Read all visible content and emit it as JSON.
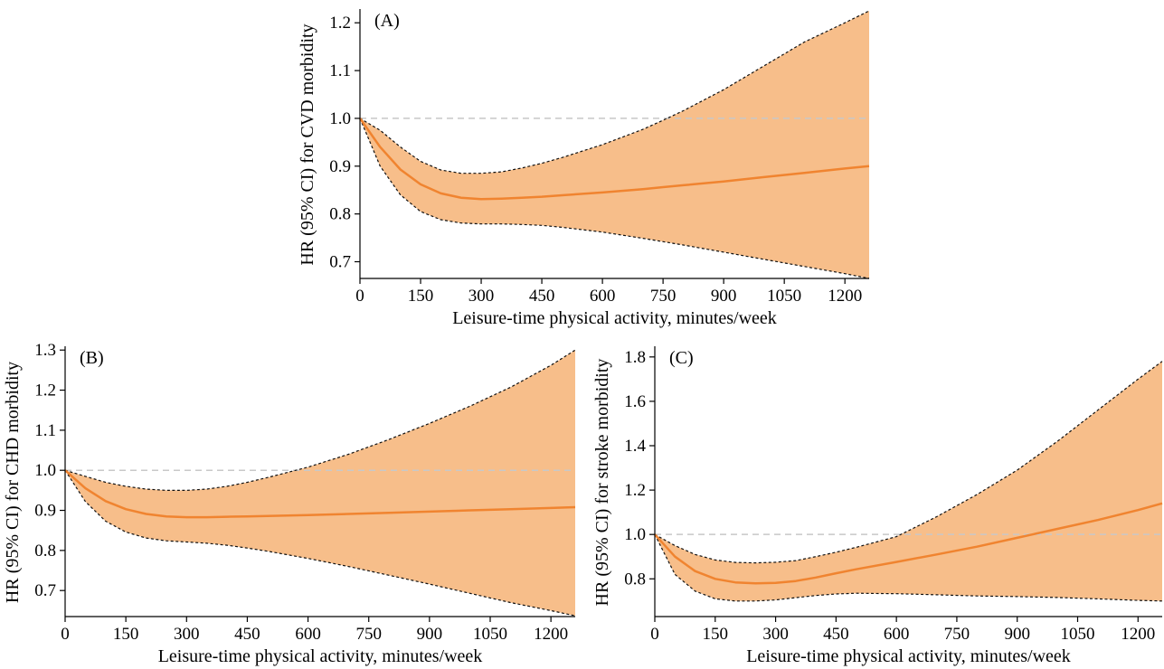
{
  "chart_data": [
    {
      "type": "line",
      "panel_label": "(A)",
      "xlabel": "Leisure-time physical activity, minutes/week",
      "ylabel": "HR (95% CI) for CVD morbidity",
      "xlim": [
        0,
        1260
      ],
      "ylim": [
        0.665,
        1.225
      ],
      "xticks": [
        0,
        150,
        300,
        450,
        600,
        750,
        900,
        1050,
        1200
      ],
      "yticks": [
        0.7,
        0.8,
        0.9,
        1.0,
        1.1,
        1.2
      ],
      "ytick_decimals": 1,
      "reference_line": 1.0,
      "x": [
        0,
        50,
        100,
        150,
        200,
        250,
        300,
        350,
        400,
        450,
        500,
        600,
        700,
        750,
        800,
        900,
        1000,
        1100,
        1200,
        1260
      ],
      "series": [
        {
          "values": [
            1.0,
            0.94,
            0.893,
            0.862,
            0.843,
            0.834,
            0.831,
            0.832,
            0.834,
            0.836,
            0.839,
            0.845,
            0.852,
            0.856,
            0.86,
            0.868,
            0.877,
            0.886,
            0.895,
            0.9
          ]
        },
        {
          "values": [
            1.0,
            0.975,
            0.94,
            0.91,
            0.892,
            0.885,
            0.885,
            0.888,
            0.896,
            0.906,
            0.918,
            0.945,
            0.977,
            0.996,
            1.016,
            1.06,
            1.11,
            1.16,
            1.2,
            1.225
          ]
        },
        {
          "values": [
            1.0,
            0.9,
            0.84,
            0.805,
            0.788,
            0.781,
            0.779,
            0.779,
            0.778,
            0.776,
            0.772,
            0.762,
            0.749,
            0.742,
            0.735,
            0.72,
            0.705,
            0.69,
            0.675,
            0.665
          ]
        }
      ],
      "colors": {
        "line": "#f08430",
        "band": "#f7be8a",
        "bound": "#111111",
        "reference": "#c8c8c8"
      }
    },
    {
      "type": "line",
      "panel_label": "(B)",
      "xlabel": "Leisure-time physical activity, minutes/week",
      "ylabel": "HR (95% CI) for CHD morbidity",
      "xlim": [
        0,
        1260
      ],
      "ylim": [
        0.635,
        1.305
      ],
      "xticks": [
        0,
        150,
        300,
        450,
        600,
        750,
        900,
        1050,
        1200
      ],
      "yticks": [
        0.7,
        0.8,
        0.9,
        1.0,
        1.1,
        1.2,
        1.3
      ],
      "ytick_decimals": 1,
      "reference_line": 1.0,
      "x": [
        0,
        50,
        100,
        150,
        200,
        250,
        300,
        350,
        400,
        450,
        500,
        600,
        700,
        800,
        900,
        1000,
        1100,
        1200,
        1260
      ],
      "series": [
        {
          "values": [
            1.0,
            0.955,
            0.923,
            0.903,
            0.891,
            0.885,
            0.883,
            0.883,
            0.884,
            0.885,
            0.886,
            0.888,
            0.891,
            0.894,
            0.897,
            0.9,
            0.903,
            0.906,
            0.908
          ]
        },
        {
          "values": [
            1.0,
            0.985,
            0.97,
            0.96,
            0.953,
            0.95,
            0.95,
            0.953,
            0.96,
            0.97,
            0.982,
            1.008,
            1.04,
            1.077,
            1.117,
            1.16,
            1.207,
            1.262,
            1.3
          ]
        },
        {
          "values": [
            1.0,
            0.922,
            0.873,
            0.846,
            0.831,
            0.824,
            0.821,
            0.818,
            0.813,
            0.806,
            0.798,
            0.78,
            0.76,
            0.738,
            0.716,
            0.693,
            0.67,
            0.65,
            0.637
          ]
        }
      ],
      "colors": {
        "line": "#f08430",
        "band": "#f7be8a",
        "bound": "#111111",
        "reference": "#c8c8c8"
      }
    },
    {
      "type": "line",
      "panel_label": "(C)",
      "xlabel": "Leisure-time physical activity, minutes/week",
      "ylabel": "HR (95% CI) for stroke morbidity",
      "xlim": [
        0,
        1260
      ],
      "ylim": [
        0.63,
        1.84
      ],
      "xticks": [
        0,
        150,
        300,
        450,
        600,
        750,
        900,
        1050,
        1200
      ],
      "yticks": [
        0.8,
        1.0,
        1.2,
        1.4,
        1.6,
        1.8
      ],
      "ytick_decimals": 1,
      "reference_line": 1.0,
      "x": [
        0,
        50,
        100,
        150,
        200,
        250,
        300,
        350,
        400,
        450,
        500,
        600,
        700,
        800,
        900,
        1000,
        1100,
        1200,
        1260
      ],
      "series": [
        {
          "values": [
            1.0,
            0.9,
            0.835,
            0.8,
            0.784,
            0.78,
            0.782,
            0.79,
            0.806,
            0.825,
            0.843,
            0.876,
            0.91,
            0.945,
            0.985,
            1.025,
            1.065,
            1.11,
            1.14
          ]
        },
        {
          "values": [
            1.0,
            0.95,
            0.91,
            0.885,
            0.874,
            0.872,
            0.875,
            0.882,
            0.9,
            0.92,
            0.942,
            0.99,
            1.08,
            1.18,
            1.29,
            1.42,
            1.56,
            1.7,
            1.78
          ]
        },
        {
          "values": [
            1.0,
            0.82,
            0.745,
            0.71,
            0.7,
            0.7,
            0.705,
            0.715,
            0.725,
            0.732,
            0.735,
            0.733,
            0.728,
            0.723,
            0.72,
            0.716,
            0.71,
            0.703,
            0.7
          ]
        }
      ],
      "colors": {
        "line": "#f08430",
        "band": "#f7be8a",
        "bound": "#111111",
        "reference": "#c8c8c8"
      }
    }
  ]
}
